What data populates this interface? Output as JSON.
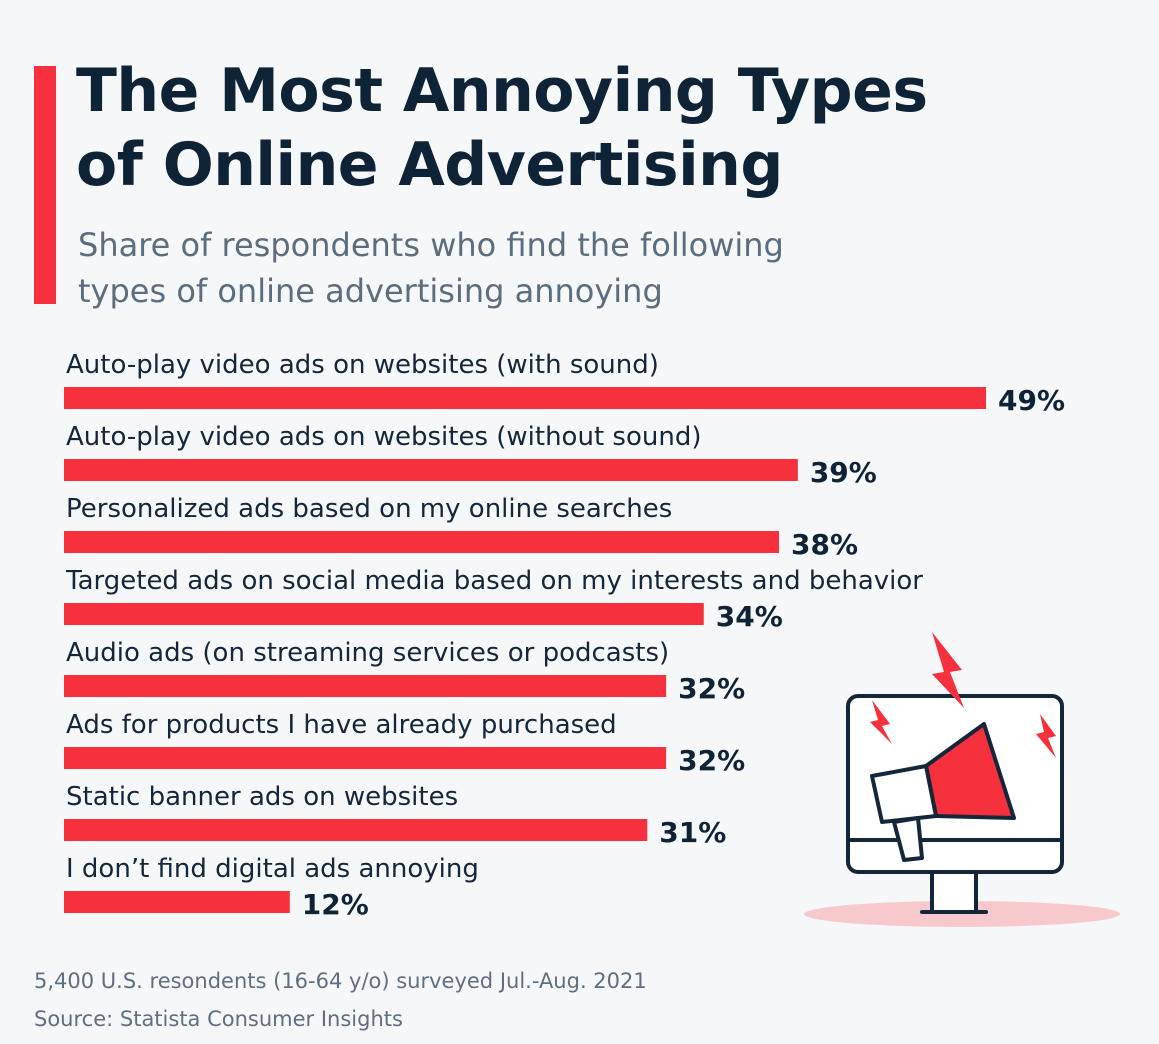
{
  "header": {
    "title_lines": [
      "The Most Annoying Types",
      "of Online Advertising"
    ],
    "subtitle_lines": [
      "Share of respondents who find the following",
      "types of online advertising annoying"
    ]
  },
  "chart_data": {
    "type": "bar",
    "orientation": "horizontal",
    "title": "The Most Annoying Types of Online Advertising",
    "subtitle": "Share of respondents who find the following types of online advertising annoying",
    "categories": [
      "Auto-play video ads on websites (with sound)",
      "Auto-play video ads on websites (without sound)",
      "Personalized ads based on my online searches",
      "Targeted ads on social media based on my interests and behavior",
      "Audio ads (on streaming services or podcasts)",
      "Ads for products I have already purchased",
      "Static banner ads on websites",
      "I don’t find digital ads annoying"
    ],
    "values": [
      49,
      39,
      38,
      34,
      32,
      32,
      31,
      12
    ],
    "value_labels": [
      "49%",
      "39%",
      "38%",
      "34%",
      "32%",
      "32%",
      "31%",
      "12%"
    ],
    "unit": "%",
    "xlim": [
      0,
      49
    ],
    "grid": false,
    "legend": "none",
    "bar_color": "#f6303c"
  },
  "illustration": {
    "icon": "monitor-megaphone-icon",
    "accent_color": "#f6303c",
    "line_color": "#14263a"
  },
  "footer": {
    "note": "5,400 U.S. resondents (16-64 y/o) surveyed Jul.-Aug. 2021",
    "source": "Source: Statista Consumer Insights"
  }
}
